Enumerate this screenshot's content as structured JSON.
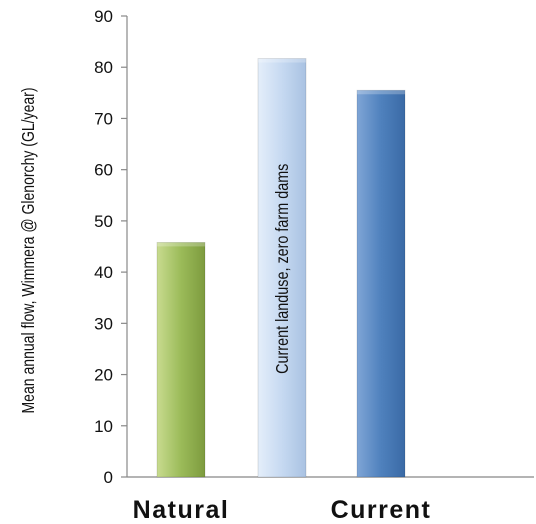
{
  "chart_data": {
    "type": "bar",
    "title": "",
    "ylabel": "Mean annual flow, Wimmera @ Glenorchy (GL/year)",
    "ylim": [
      0,
      90
    ],
    "yticks": [
      0,
      10,
      20,
      30,
      40,
      50,
      60,
      70,
      80,
      90
    ],
    "category_labels": [
      "Natural",
      "Current"
    ],
    "bars": [
      {
        "value": 45.8,
        "color": "#9bbb59",
        "label": ""
      },
      {
        "value": 81.7,
        "color": "#c6d9f1",
        "label": "Current landuse, zero farm dams"
      },
      {
        "value": 75.5,
        "color": "#4f81bd",
        "label": ""
      }
    ],
    "grid": false,
    "legend": "none"
  }
}
